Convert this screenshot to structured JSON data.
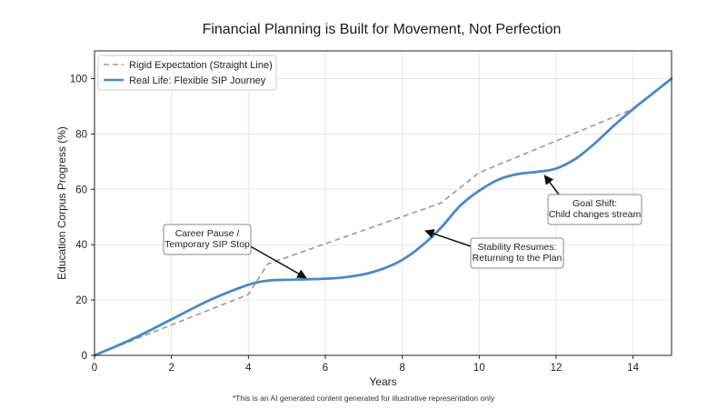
{
  "chart_data": {
    "type": "line",
    "title": "Financial Planning is Built for Movement, Not Perfection",
    "xlabel": "Years",
    "ylabel": "Education Corpus Progress (%)",
    "xlim": [
      0,
      15
    ],
    "ylim": [
      0,
      110
    ],
    "xticks": [
      0,
      2,
      4,
      6,
      8,
      10,
      12,
      14
    ],
    "yticks": [
      0,
      20,
      40,
      60,
      80,
      100
    ],
    "grid": true,
    "legend_position": "top-left",
    "series": [
      {
        "name": "Rigid Expectation (Straight Line)",
        "style": "dashed",
        "color": "#999999",
        "x": [
          0,
          4,
          4.5,
          9,
          10,
          14
        ],
        "y": [
          0,
          22,
          33,
          55,
          66,
          89
        ]
      },
      {
        "name": "Real Life: Flexible SIP Journey",
        "style": "solid",
        "color": "#4a88c7",
        "x": [
          0,
          1,
          2,
          3,
          4,
          4.5,
          5,
          5.5,
          6,
          6.5,
          7,
          7.5,
          8,
          8.5,
          9,
          9.5,
          10,
          10.5,
          11,
          11.5,
          12,
          12.5,
          13,
          13.5,
          14,
          14.5,
          15
        ],
        "y": [
          0,
          6,
          13,
          20,
          25.5,
          27,
          27.3,
          27.5,
          27.7,
          28.2,
          29.3,
          31.3,
          34.5,
          39.5,
          46,
          54,
          59.5,
          63.5,
          65.5,
          66.3,
          67.5,
          71,
          76.5,
          83,
          89,
          94.5,
          100
        ]
      }
    ],
    "annotations": [
      {
        "lines": [
          "Career Pause /",
          "Temporary SIP Stop"
        ],
        "target": [
          5.5,
          28
        ]
      },
      {
        "lines": [
          "Stability Resumes:",
          "Returning to the Plan"
        ],
        "target": [
          8.6,
          45
        ]
      },
      {
        "lines": [
          "Goal Shift:",
          "Child changes stream"
        ],
        "target": [
          11.7,
          65
        ]
      }
    ],
    "footnote": "*This is an AI generated content generated for illustrative representation only"
  }
}
